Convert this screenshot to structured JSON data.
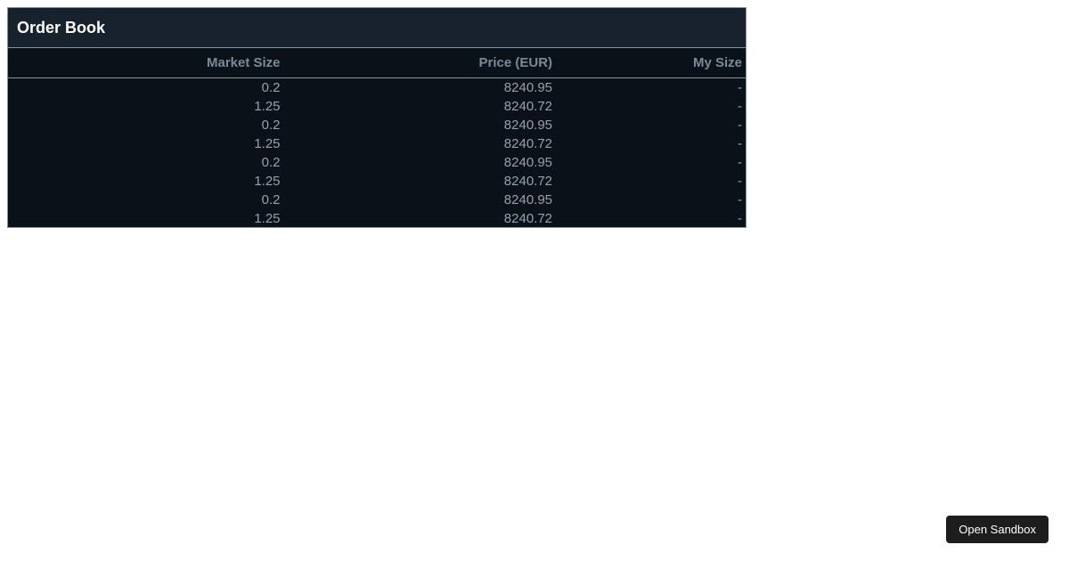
{
  "panel": {
    "title": "Order Book"
  },
  "table": {
    "columns": [
      "Market Size",
      "Price (EUR)",
      "My Size"
    ],
    "rows": [
      [
        "0.2",
        "8240.95",
        "-"
      ],
      [
        "1.25",
        "8240.72",
        "-"
      ],
      [
        "0.2",
        "8240.95",
        "-"
      ],
      [
        "1.25",
        "8240.72",
        "-"
      ],
      [
        "0.2",
        "8240.95",
        "-"
      ],
      [
        "1.25",
        "8240.72",
        "-"
      ],
      [
        "0.2",
        "8240.95",
        "-"
      ],
      [
        "1.25",
        "8240.72",
        "-"
      ]
    ]
  },
  "sandbox_button": {
    "label": "Open Sandbox"
  },
  "colors": {
    "page_background": "#ffffff",
    "panel_background": "#0a1119",
    "title_bar_background": "#17222d",
    "border": "#8494a3",
    "title_text": "#ffffff",
    "header_text": "#7a8a98",
    "cell_text": "#94a1ad",
    "button_background": "#1d1d1d",
    "button_text": "#ffffff"
  }
}
